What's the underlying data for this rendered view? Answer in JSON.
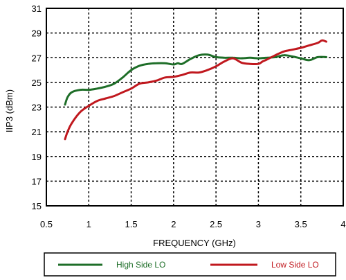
{
  "chart_data": {
    "type": "line",
    "title": "",
    "xlabel": "FREQUENCY (GHz)",
    "ylabel": "IIP3 (dBm)",
    "xlim": [
      0.5,
      4
    ],
    "ylim": [
      15,
      31
    ],
    "xticks": [
      0.5,
      1,
      1.5,
      2,
      2.5,
      3,
      3.5,
      4
    ],
    "xtick_labels": [
      "0.5",
      "1",
      "1.5",
      "2",
      "2.5",
      "3",
      "3.5",
      "4"
    ],
    "yticks": [
      15,
      17,
      19,
      21,
      23,
      25,
      27,
      29,
      31
    ],
    "ytick_labels": [
      "15",
      "17",
      "19",
      "21",
      "23",
      "25",
      "27",
      "29",
      "31"
    ],
    "grid": true,
    "grid_style": "dotted",
    "legend_position": "bottom",
    "series": [
      {
        "name": "High Side LO",
        "color": "#1e6e28",
        "x": [
          0.72,
          0.75,
          0.8,
          0.9,
          1.0,
          1.1,
          1.2,
          1.3,
          1.4,
          1.5,
          1.6,
          1.7,
          1.8,
          1.9,
          2.0,
          2.05,
          2.1,
          2.2,
          2.3,
          2.4,
          2.5,
          2.6,
          2.7,
          2.8,
          2.9,
          3.0,
          3.1,
          3.2,
          3.3,
          3.4,
          3.5,
          3.6,
          3.7,
          3.8
        ],
        "y": [
          23.2,
          23.8,
          24.2,
          24.4,
          24.4,
          24.5,
          24.65,
          24.9,
          25.4,
          26.0,
          26.35,
          26.5,
          26.55,
          26.55,
          26.45,
          26.55,
          26.5,
          26.9,
          27.2,
          27.25,
          27.05,
          27.0,
          27.0,
          26.95,
          27.0,
          26.95,
          27.0,
          27.05,
          27.2,
          27.1,
          26.95,
          26.8,
          27.05,
          27.05
        ]
      },
      {
        "name": "Low Side LO",
        "color": "#c0181e",
        "x": [
          0.72,
          0.75,
          0.8,
          0.9,
          1.0,
          1.1,
          1.2,
          1.3,
          1.4,
          1.5,
          1.6,
          1.7,
          1.8,
          1.9,
          2.0,
          2.1,
          2.2,
          2.3,
          2.4,
          2.5,
          2.6,
          2.7,
          2.8,
          2.9,
          3.0,
          3.05,
          3.1,
          3.2,
          3.3,
          3.4,
          3.5,
          3.6,
          3.7,
          3.75,
          3.8
        ],
        "y": [
          20.4,
          21.0,
          21.7,
          22.6,
          23.1,
          23.5,
          23.7,
          23.9,
          24.2,
          24.5,
          24.9,
          25.0,
          25.15,
          25.4,
          25.45,
          25.6,
          25.8,
          25.8,
          26.0,
          26.3,
          26.7,
          26.95,
          26.6,
          26.5,
          26.5,
          26.7,
          26.85,
          27.2,
          27.5,
          27.65,
          27.8,
          28.0,
          28.2,
          28.4,
          28.3
        ]
      }
    ]
  }
}
